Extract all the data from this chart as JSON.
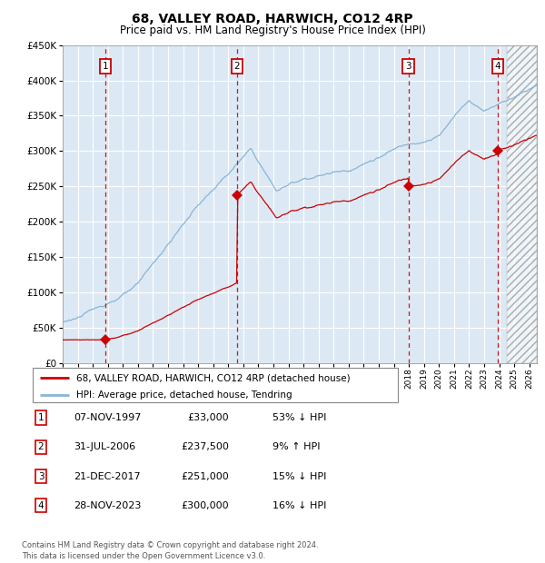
{
  "title": "68, VALLEY ROAD, HARWICH, CO12 4RP",
  "subtitle": "Price paid vs. HM Land Registry's House Price Index (HPI)",
  "background_color": "#FFFFFF",
  "plot_bg_color": "#dce9f5",
  "grid_color": "#FFFFFF",
  "hpi_color": "#8ab4d4",
  "price_color": "#cc0000",
  "sale_marker_color": "#cc0000",
  "vline_color": "#cc0000",
  "label_box_color": "#cc0000",
  "sale_dates_num": [
    1997.85,
    2006.58,
    2017.97,
    2023.91
  ],
  "sale_prices": [
    33000,
    237500,
    251000,
    300000
  ],
  "sale_labels": [
    "1",
    "2",
    "3",
    "4"
  ],
  "legend_line1": "68, VALLEY ROAD, HARWICH, CO12 4RP (detached house)",
  "legend_line2": "HPI: Average price, detached house, Tendring",
  "table_rows": [
    [
      "1",
      "07-NOV-1997",
      "£33,000",
      "53% ↓ HPI"
    ],
    [
      "2",
      "31-JUL-2006",
      "£237,500",
      "9% ↑ HPI"
    ],
    [
      "3",
      "21-DEC-2017",
      "£251,000",
      "15% ↓ HPI"
    ],
    [
      "4",
      "28-NOV-2023",
      "£300,000",
      "16% ↓ HPI"
    ]
  ],
  "footer": "Contains HM Land Registry data © Crown copyright and database right 2024.\nThis data is licensed under the Open Government Licence v3.0.",
  "xmin": 1995.0,
  "xmax": 2026.5,
  "ymin": 0,
  "ymax": 450000,
  "future_shade_start": 2024.5
}
